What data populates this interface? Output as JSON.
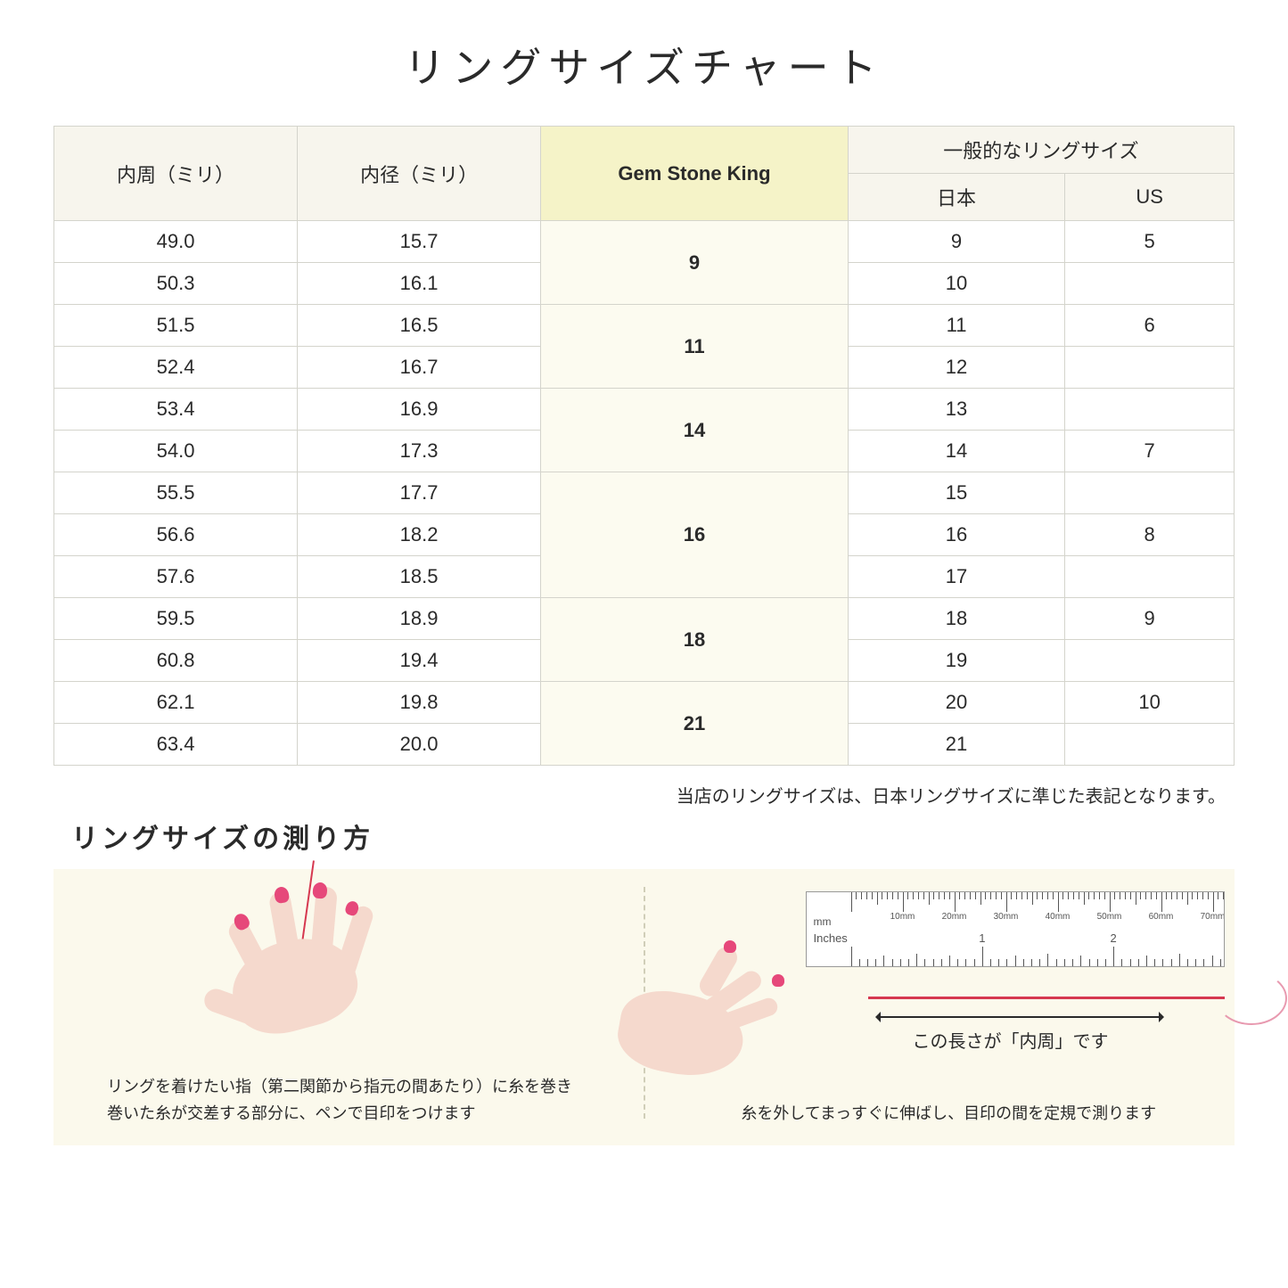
{
  "title": "リングサイズチャート",
  "headers": {
    "circumference": "内周（ミリ）",
    "diameter": "内径（ミリ）",
    "gsk": "Gem Stone King",
    "general": "一般的なリングサイズ",
    "japan": "日本",
    "us": "US"
  },
  "groups": [
    {
      "gsk": "9",
      "rows": [
        {
          "c": "49.0",
          "d": "15.7",
          "jp": "9",
          "us": "5"
        },
        {
          "c": "50.3",
          "d": "16.1",
          "jp": "10",
          "us": ""
        }
      ]
    },
    {
      "gsk": "11",
      "rows": [
        {
          "c": "51.5",
          "d": "16.5",
          "jp": "11",
          "us": "6"
        },
        {
          "c": "52.4",
          "d": "16.7",
          "jp": "12",
          "us": ""
        }
      ]
    },
    {
      "gsk": "14",
      "rows": [
        {
          "c": "53.4",
          "d": "16.9",
          "jp": "13",
          "us": ""
        },
        {
          "c": "54.0",
          "d": "17.3",
          "jp": "14",
          "us": "7"
        }
      ]
    },
    {
      "gsk": "16",
      "rows": [
        {
          "c": "55.5",
          "d": "17.7",
          "jp": "15",
          "us": ""
        },
        {
          "c": "56.6",
          "d": "18.2",
          "jp": "16",
          "us": "8"
        },
        {
          "c": "57.6",
          "d": "18.5",
          "jp": "17",
          "us": ""
        }
      ]
    },
    {
      "gsk": "18",
      "rows": [
        {
          "c": "59.5",
          "d": "18.9",
          "jp": "18",
          "us": "9"
        },
        {
          "c": "60.8",
          "d": "19.4",
          "jp": "19",
          "us": ""
        }
      ]
    },
    {
      "gsk": "21",
      "rows": [
        {
          "c": "62.1",
          "d": "19.8",
          "jp": "20",
          "us": "10"
        },
        {
          "c": "63.4",
          "d": "20.0",
          "jp": "21",
          "us": ""
        }
      ]
    }
  ],
  "note": "当店のリングサイズは、日本リングサイズに準じた表記となります。",
  "subtitle": "リングサイズの測り方",
  "instruction_left_1": "リングを着けたい指（第二関節から指元の間あたり）に糸を巻き",
  "instruction_left_2": "巻いた糸が交差する部分に、ペンで目印をつけます",
  "instruction_right": "糸を外してまっすぐに伸ばし、目印の間を定規で測ります",
  "arrow_label": "この長さが「内周」です",
  "ruler": {
    "mm_label": "mm",
    "in_label": "Inches",
    "mm_marks": [
      "10mm",
      "20mm",
      "30mm",
      "40mm",
      "50mm",
      "60mm",
      "70mm"
    ],
    "in_marks": [
      "1",
      "2"
    ]
  },
  "colors": {
    "header_bg": "#f7f5ed",
    "gsk_bg": "#f5f3c8",
    "gsk_cell_bg": "#fcfbf0",
    "border": "#d4d4cc",
    "instruction_bg": "#fbf9ec",
    "skin": "#f5d9cd",
    "nail": "#e6487a",
    "thread": "#d63850"
  }
}
